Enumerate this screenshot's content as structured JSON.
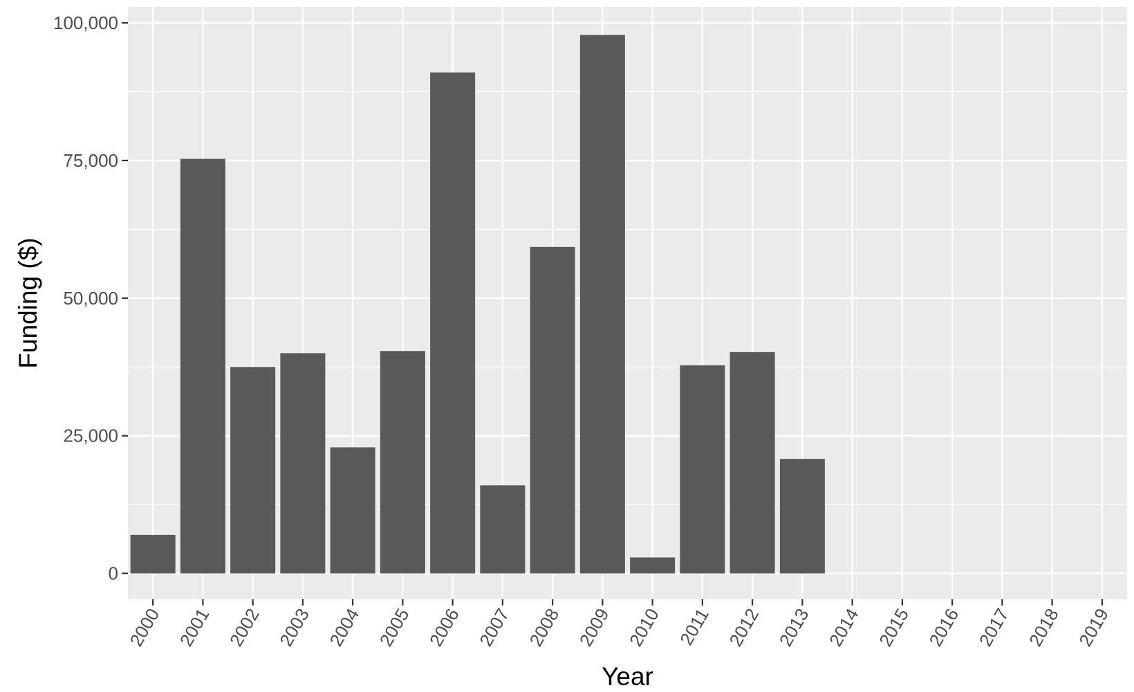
{
  "chart_data": {
    "type": "bar",
    "title": "",
    "xlabel": "Year",
    "ylabel": "Funding ($)",
    "categories": [
      "2000",
      "2001",
      "2002",
      "2003",
      "2004",
      "2005",
      "2006",
      "2007",
      "2008",
      "2009",
      "2010",
      "2011",
      "2012",
      "2013",
      "2014",
      "2015",
      "2016",
      "2017",
      "2018",
      "2019"
    ],
    "values": [
      7000,
      75300,
      37500,
      40000,
      22900,
      40400,
      91000,
      16000,
      59300,
      97800,
      2900,
      37800,
      40200,
      20800,
      0,
      0,
      0,
      0,
      0,
      0
    ],
    "ylim": [
      -4700,
      102900
    ],
    "yticks": [
      0,
      25000,
      50000,
      75000,
      100000
    ],
    "ytick_labels": [
      "0",
      "25,000",
      "50,000",
      "75,000",
      "100,000"
    ],
    "grid": true,
    "legend": "none",
    "colors": {
      "panel_background": "#ebebeb",
      "grid_major": "#ffffff",
      "bar_fill": "#595959",
      "tick_text": "#4d4d4d",
      "axis_title": "#000000"
    }
  }
}
